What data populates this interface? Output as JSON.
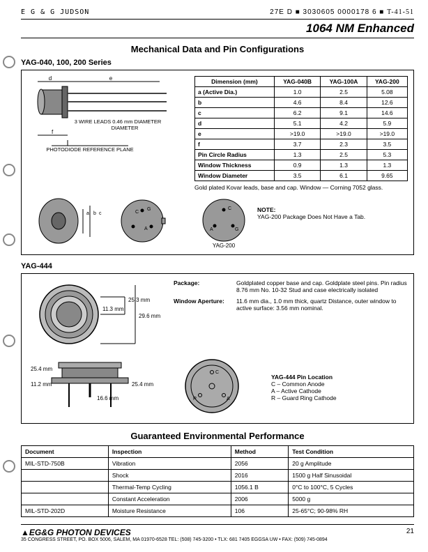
{
  "header": {
    "left": "E G & G  JUDSON",
    "mid": "27E D",
    "code": "3030605 0000178 6",
    "hand": "T-41-51"
  },
  "title": "1064 NM Enhanced",
  "section1_title": "Mechanical Data and Pin Configurations",
  "series1": "YAG-040, 100, 200 Series",
  "diagram1": {
    "lead_label": "3 WIRE LEADS 0.46 mm DIAMETER",
    "ref_plane": "PHOTODIODE REFERENCE PLANE"
  },
  "dim_table": {
    "headers": [
      "Dimension (mm)",
      "YAG-040B",
      "YAG-100A",
      "YAG-200"
    ],
    "rows": [
      [
        "a (Active Dia.)",
        "1.0",
        "2.5",
        "5.08"
      ],
      [
        "b",
        "4.6",
        "8.4",
        "12.6"
      ],
      [
        "c",
        "6.2",
        "9.1",
        "14.6"
      ],
      [
        "d",
        "5.1",
        "4.2",
        "5.9"
      ],
      [
        "e",
        ">19.0",
        ">19.0",
        ">19.0"
      ],
      [
        "f",
        "3.7",
        "2.3",
        "3.5"
      ],
      [
        "Pin Circle Radius",
        "1.3",
        "2.5",
        "5.3"
      ],
      [
        "Window Thickness",
        "0.9",
        "1.3",
        "1.3"
      ],
      [
        "Window Diameter",
        "3.5",
        "6.1",
        "9.65"
      ]
    ],
    "note": "Gold plated Kovar leads, base and cap. Window — Corning 7052 glass."
  },
  "yag200_note": {
    "title": "NOTE:",
    "text": "YAG-200 Package Does Not Have a Tab.",
    "label": "YAG-200"
  },
  "pin_labels": {
    "G": "G",
    "C": "C",
    "A": "A"
  },
  "series2": "YAG-444",
  "yag444": {
    "dims": {
      "d1": "25.3 mm",
      "d2": "11.3 mm",
      "d3": "29.6 mm",
      "w1": "25.4 mm",
      "w2": "11.2 mm",
      "h1": "25.4 mm",
      "h2": "16.6 mm"
    },
    "package_label": "Package:",
    "package_text": "Goldplated copper base and cap. Goldplate steel pins. Pin radius 8.76 mm No. 10-32 Stud and case electrically isolated",
    "aperture_label": "Window Aperture:",
    "aperture_text": "11.6 mm dia., 1.0 mm thick, quartz Distance, outer window to active surface: 3.56 mm nominal.",
    "pin_title": "YAG-444 Pin Location",
    "pin_C": "C  –  Common Anode",
    "pin_A": "A  –  Active Cathode",
    "pin_R": "R  –  Guard Ring Cathode",
    "R": "R",
    "A": "A",
    "C": "C"
  },
  "env_title": "Guaranteed Environmental Performance",
  "env_table": {
    "headers": [
      "Document",
      "Inspection",
      "Method",
      "Test Condition"
    ],
    "rows": [
      [
        "MIL-STD-750B",
        "Vibration",
        "2056",
        "20 g Amplitude"
      ],
      [
        "",
        "Shock",
        "2016",
        "1500 g Half Sinusoidal"
      ],
      [
        "",
        "Thermal-Temp Cycling",
        "1056.1 B",
        "0°C to 100°C, 5 Cycles"
      ],
      [
        "",
        "Constant Acceleration",
        "2006",
        "5000 g"
      ],
      [
        "MIL-STD-202D",
        "Moisture Resistance",
        "106",
        "25-65°C; 90-98% RH"
      ]
    ]
  },
  "footer": {
    "logo": "EG&G PHOTON DEVICES",
    "addr": "35 CONGRESS STREET, PO. BOX 5006, SALEM, MA 01970-6528 TEL: (508) 745-3200 • TLX: 681 7405 EGGSA UW • FAX: (509) 745-0894",
    "page": "21"
  }
}
